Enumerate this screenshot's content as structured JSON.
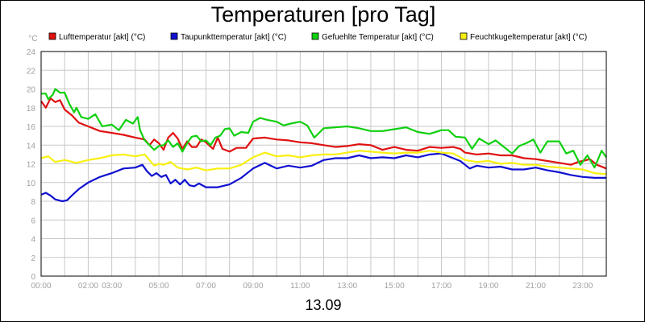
{
  "chart_data": {
    "type": "line",
    "title": "Temperaturen [pro Tag]",
    "date_label": "13.09",
    "y_unit_label": "°C",
    "ylim": [
      0,
      24
    ],
    "y_ticks": [
      0,
      2,
      4,
      6,
      8,
      10,
      12,
      14,
      16,
      18,
      20,
      22,
      24
    ],
    "xlim": [
      0,
      24
    ],
    "x_ticks": [
      {
        "h": 0,
        "label": "00:00"
      },
      {
        "h": 2,
        "label": "02:00"
      },
      {
        "h": 3,
        "label": "03:00"
      },
      {
        "h": 5,
        "label": "05:00"
      },
      {
        "h": 7,
        "label": "07:00"
      },
      {
        "h": 9,
        "label": "09:00"
      },
      {
        "h": 11,
        "label": "11:00"
      },
      {
        "h": 13,
        "label": "13:00"
      },
      {
        "h": 15,
        "label": "15:00"
      },
      {
        "h": 17,
        "label": "17:00"
      },
      {
        "h": 19,
        "label": "19:00"
      },
      {
        "h": 21,
        "label": "21:00"
      },
      {
        "h": 23,
        "label": "23:00"
      }
    ],
    "grid": true,
    "legend_position": "top",
    "series": [
      {
        "name": "Lufttemperatur [akt] (°C)",
        "color": "#e01010",
        "points": [
          [
            0,
            18.7
          ],
          [
            0.2,
            18.0
          ],
          [
            0.4,
            19.0
          ],
          [
            0.6,
            18.6
          ],
          [
            0.8,
            18.8
          ],
          [
            1.0,
            17.8
          ],
          [
            1.3,
            17.2
          ],
          [
            1.6,
            16.4
          ],
          [
            2.0,
            16.0
          ],
          [
            2.5,
            15.5
          ],
          [
            3.0,
            15.3
          ],
          [
            3.5,
            15.1
          ],
          [
            4.0,
            14.8
          ],
          [
            4.4,
            14.6
          ],
          [
            4.6,
            14.0
          ],
          [
            4.8,
            14.6
          ],
          [
            5.0,
            14.2
          ],
          [
            5.2,
            13.5
          ],
          [
            5.4,
            14.8
          ],
          [
            5.6,
            15.3
          ],
          [
            5.8,
            14.7
          ],
          [
            6.0,
            13.6
          ],
          [
            6.2,
            14.4
          ],
          [
            6.4,
            13.8
          ],
          [
            6.6,
            13.8
          ],
          [
            6.8,
            14.6
          ],
          [
            7.0,
            14.3
          ],
          [
            7.3,
            13.6
          ],
          [
            7.5,
            14.8
          ],
          [
            7.7,
            13.6
          ],
          [
            8.0,
            13.3
          ],
          [
            8.3,
            13.7
          ],
          [
            8.7,
            13.7
          ],
          [
            9.0,
            14.7
          ],
          [
            9.5,
            14.8
          ],
          [
            10.0,
            14.6
          ],
          [
            10.5,
            14.5
          ],
          [
            11.0,
            14.3
          ],
          [
            11.5,
            14.2
          ],
          [
            12.0,
            14.0
          ],
          [
            12.5,
            13.8
          ],
          [
            13.0,
            13.9
          ],
          [
            13.5,
            14.1
          ],
          [
            14.0,
            14.0
          ],
          [
            14.5,
            13.5
          ],
          [
            15.0,
            13.8
          ],
          [
            15.5,
            13.5
          ],
          [
            16.0,
            13.4
          ],
          [
            16.5,
            13.8
          ],
          [
            17.0,
            13.7
          ],
          [
            17.5,
            13.8
          ],
          [
            17.8,
            13.6
          ],
          [
            18.0,
            13.2
          ],
          [
            18.5,
            13.0
          ],
          [
            19.0,
            13.1
          ],
          [
            19.5,
            12.9
          ],
          [
            20.0,
            12.9
          ],
          [
            20.5,
            12.6
          ],
          [
            21.0,
            12.5
          ],
          [
            21.5,
            12.3
          ],
          [
            22.0,
            12.1
          ],
          [
            22.5,
            11.9
          ],
          [
            22.8,
            12.2
          ],
          [
            23.0,
            12.3
          ],
          [
            23.3,
            12.5
          ],
          [
            23.6,
            11.9
          ],
          [
            24.0,
            11.5
          ]
        ]
      },
      {
        "name": "Taupunkttemperatur [akt] (°C)",
        "color": "#1010d0",
        "points": [
          [
            0,
            8.7
          ],
          [
            0.2,
            8.9
          ],
          [
            0.4,
            8.6
          ],
          [
            0.6,
            8.2
          ],
          [
            0.9,
            8.0
          ],
          [
            1.1,
            8.1
          ],
          [
            1.3,
            8.6
          ],
          [
            1.6,
            9.3
          ],
          [
            2.0,
            10.0
          ],
          [
            2.5,
            10.6
          ],
          [
            3.0,
            11.0
          ],
          [
            3.5,
            11.5
          ],
          [
            4.0,
            11.6
          ],
          [
            4.3,
            11.9
          ],
          [
            4.5,
            11.2
          ],
          [
            4.7,
            10.7
          ],
          [
            4.9,
            11.0
          ],
          [
            5.1,
            10.6
          ],
          [
            5.3,
            10.8
          ],
          [
            5.5,
            9.9
          ],
          [
            5.7,
            10.3
          ],
          [
            5.9,
            9.8
          ],
          [
            6.1,
            10.3
          ],
          [
            6.3,
            9.7
          ],
          [
            6.5,
            9.6
          ],
          [
            6.7,
            9.9
          ],
          [
            7.0,
            9.5
          ],
          [
            7.5,
            9.5
          ],
          [
            8.0,
            9.8
          ],
          [
            8.5,
            10.5
          ],
          [
            9.0,
            11.5
          ],
          [
            9.5,
            12.1
          ],
          [
            10.0,
            11.5
          ],
          [
            10.5,
            11.8
          ],
          [
            11.0,
            11.6
          ],
          [
            11.5,
            11.8
          ],
          [
            12.0,
            12.4
          ],
          [
            12.5,
            12.6
          ],
          [
            13.0,
            12.6
          ],
          [
            13.5,
            12.9
          ],
          [
            14.0,
            12.6
          ],
          [
            14.5,
            12.7
          ],
          [
            15.0,
            12.6
          ],
          [
            15.5,
            12.9
          ],
          [
            16.0,
            12.7
          ],
          [
            16.5,
            13.0
          ],
          [
            17.0,
            13.1
          ],
          [
            17.5,
            12.6
          ],
          [
            17.8,
            12.3
          ],
          [
            18.0,
            11.9
          ],
          [
            18.2,
            11.5
          ],
          [
            18.5,
            11.8
          ],
          [
            19.0,
            11.6
          ],
          [
            19.5,
            11.7
          ],
          [
            20.0,
            11.4
          ],
          [
            20.5,
            11.4
          ],
          [
            21.0,
            11.6
          ],
          [
            21.5,
            11.3
          ],
          [
            22.0,
            11.1
          ],
          [
            22.5,
            10.8
          ],
          [
            23.0,
            10.6
          ],
          [
            23.5,
            10.5
          ],
          [
            24.0,
            10.5
          ]
        ]
      },
      {
        "name": "Gefuehlte Temperatur [akt] (°C)",
        "color": "#10d010",
        "points": [
          [
            0,
            19.5
          ],
          [
            0.2,
            19.5
          ],
          [
            0.3,
            18.9
          ],
          [
            0.5,
            19.4
          ],
          [
            0.6,
            20.0
          ],
          [
            0.8,
            19.6
          ],
          [
            1.0,
            19.6
          ],
          [
            1.2,
            18.4
          ],
          [
            1.4,
            17.5
          ],
          [
            1.5,
            18.0
          ],
          [
            1.7,
            17.0
          ],
          [
            2.0,
            16.8
          ],
          [
            2.3,
            17.3
          ],
          [
            2.6,
            16.0
          ],
          [
            3.0,
            16.2
          ],
          [
            3.3,
            15.6
          ],
          [
            3.6,
            16.7
          ],
          [
            3.9,
            16.3
          ],
          [
            4.1,
            17.0
          ],
          [
            4.2,
            15.6
          ],
          [
            4.4,
            14.5
          ],
          [
            4.6,
            14.0
          ],
          [
            4.8,
            13.5
          ],
          [
            5.0,
            13.9
          ],
          [
            5.2,
            14.0
          ],
          [
            5.4,
            14.5
          ],
          [
            5.6,
            13.8
          ],
          [
            5.8,
            14.2
          ],
          [
            6.0,
            13.3
          ],
          [
            6.2,
            14.2
          ],
          [
            6.4,
            14.9
          ],
          [
            6.6,
            15.0
          ],
          [
            6.8,
            14.4
          ],
          [
            7.0,
            14.5
          ],
          [
            7.2,
            14.0
          ],
          [
            7.4,
            14.8
          ],
          [
            7.6,
            15.0
          ],
          [
            7.8,
            15.7
          ],
          [
            8.0,
            15.8
          ],
          [
            8.2,
            15.0
          ],
          [
            8.5,
            15.4
          ],
          [
            8.8,
            15.3
          ],
          [
            9.0,
            16.5
          ],
          [
            9.3,
            16.9
          ],
          [
            9.6,
            16.7
          ],
          [
            10.0,
            16.5
          ],
          [
            10.3,
            16.1
          ],
          [
            10.6,
            16.3
          ],
          [
            11.0,
            16.5
          ],
          [
            11.3,
            16.1
          ],
          [
            11.6,
            14.8
          ],
          [
            11.8,
            15.3
          ],
          [
            12.0,
            15.8
          ],
          [
            12.5,
            15.9
          ],
          [
            13.0,
            16.0
          ],
          [
            13.5,
            15.8
          ],
          [
            14.0,
            15.5
          ],
          [
            14.5,
            15.5
          ],
          [
            15.0,
            15.7
          ],
          [
            15.5,
            15.9
          ],
          [
            16.0,
            15.4
          ],
          [
            16.5,
            15.2
          ],
          [
            17.0,
            15.6
          ],
          [
            17.3,
            15.6
          ],
          [
            17.6,
            14.9
          ],
          [
            18.0,
            14.8
          ],
          [
            18.3,
            13.6
          ],
          [
            18.6,
            14.7
          ],
          [
            19.0,
            14.1
          ],
          [
            19.3,
            14.5
          ],
          [
            19.6,
            13.9
          ],
          [
            20.0,
            13.1
          ],
          [
            20.3,
            13.9
          ],
          [
            20.6,
            14.2
          ],
          [
            20.9,
            14.6
          ],
          [
            21.2,
            13.2
          ],
          [
            21.5,
            14.4
          ],
          [
            22.0,
            14.4
          ],
          [
            22.3,
            13.1
          ],
          [
            22.6,
            13.4
          ],
          [
            22.9,
            11.9
          ],
          [
            23.2,
            12.9
          ],
          [
            23.5,
            11.6
          ],
          [
            23.8,
            13.4
          ],
          [
            24.0,
            12.7
          ]
        ]
      },
      {
        "name": "Feuchtkugeltemperatur [akt] (°C)",
        "color": "#f8f010",
        "points": [
          [
            0,
            12.6
          ],
          [
            0.3,
            12.8
          ],
          [
            0.6,
            12.2
          ],
          [
            1.0,
            12.4
          ],
          [
            1.5,
            12.1
          ],
          [
            2.0,
            12.4
          ],
          [
            2.5,
            12.6
          ],
          [
            3.0,
            12.9
          ],
          [
            3.5,
            13.0
          ],
          [
            4.0,
            12.8
          ],
          [
            4.4,
            13.0
          ],
          [
            4.6,
            12.4
          ],
          [
            4.8,
            11.8
          ],
          [
            5.0,
            12.0
          ],
          [
            5.2,
            11.9
          ],
          [
            5.5,
            12.2
          ],
          [
            5.8,
            11.6
          ],
          [
            6.2,
            11.4
          ],
          [
            6.6,
            11.6
          ],
          [
            7.0,
            11.3
          ],
          [
            7.5,
            11.5
          ],
          [
            8.0,
            11.5
          ],
          [
            8.5,
            11.9
          ],
          [
            9.0,
            12.7
          ],
          [
            9.5,
            13.2
          ],
          [
            10.0,
            12.8
          ],
          [
            10.5,
            12.9
          ],
          [
            11.0,
            12.7
          ],
          [
            11.5,
            12.9
          ],
          [
            12.0,
            13.0
          ],
          [
            12.5,
            13.0
          ],
          [
            13.0,
            13.2
          ],
          [
            13.5,
            13.4
          ],
          [
            14.0,
            13.3
          ],
          [
            14.5,
            13.2
          ],
          [
            15.0,
            13.1
          ],
          [
            15.5,
            13.2
          ],
          [
            16.0,
            13.2
          ],
          [
            16.5,
            13.4
          ],
          [
            17.0,
            13.2
          ],
          [
            17.5,
            13.1
          ],
          [
            17.8,
            12.7
          ],
          [
            18.0,
            12.4
          ],
          [
            18.5,
            12.2
          ],
          [
            19.0,
            12.3
          ],
          [
            19.5,
            12.0
          ],
          [
            20.0,
            12.1
          ],
          [
            20.5,
            11.9
          ],
          [
            21.0,
            11.9
          ],
          [
            21.5,
            11.7
          ],
          [
            22.0,
            11.6
          ],
          [
            22.5,
            11.5
          ],
          [
            23.0,
            11.4
          ],
          [
            23.5,
            11.0
          ],
          [
            24.0,
            10.9
          ]
        ]
      }
    ]
  }
}
